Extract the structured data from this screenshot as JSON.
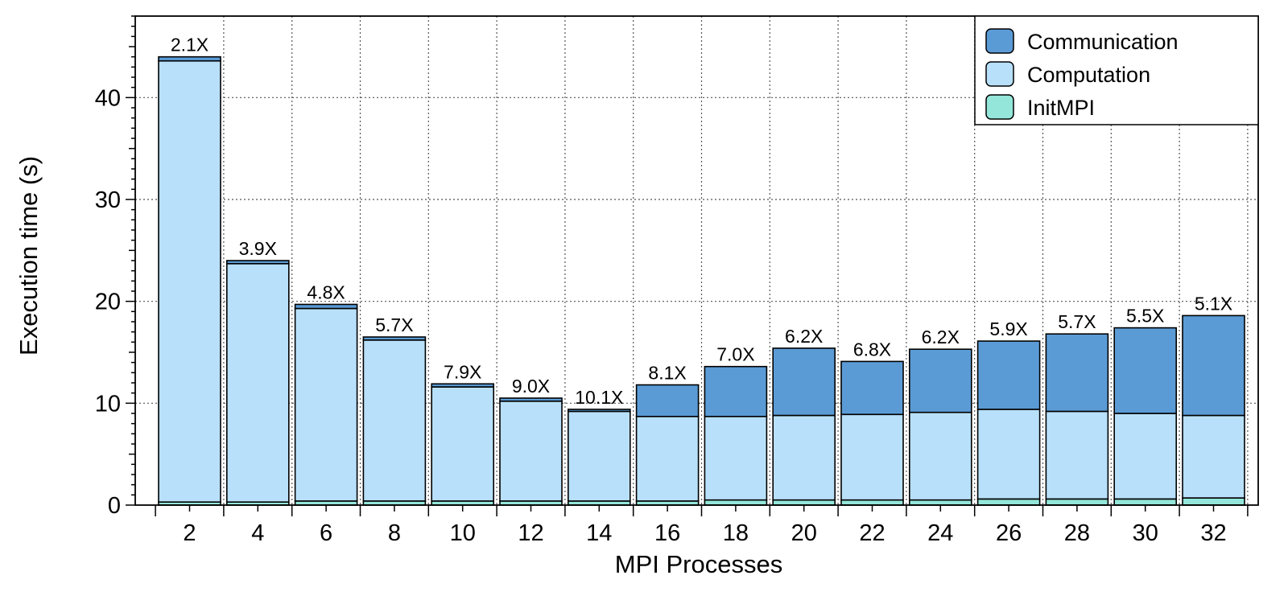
{
  "chart_data": {
    "type": "bar",
    "stacked": true,
    "xlabel": "MPI Processes",
    "ylabel": "Execution time (s)",
    "categories": [
      "2",
      "4",
      "6",
      "8",
      "10",
      "12",
      "14",
      "16",
      "18",
      "20",
      "22",
      "24",
      "26",
      "28",
      "30",
      "32"
    ],
    "ylim": [
      0,
      48
    ],
    "yticks": [
      0,
      10,
      20,
      30,
      40
    ],
    "grid": true,
    "legend_position": "top-right",
    "series": [
      {
        "name": "InitMPI",
        "color": "#93e6d9",
        "values": [
          0.3,
          0.3,
          0.4,
          0.4,
          0.4,
          0.4,
          0.4,
          0.4,
          0.5,
          0.5,
          0.5,
          0.5,
          0.6,
          0.6,
          0.6,
          0.7
        ]
      },
      {
        "name": "Computation",
        "color": "#b8e0fa",
        "values": [
          43.3,
          23.4,
          18.9,
          15.8,
          11.2,
          9.8,
          8.8,
          8.3,
          8.2,
          8.3,
          8.4,
          8.6,
          8.8,
          8.6,
          8.4,
          8.1
        ]
      },
      {
        "name": "Communication",
        "color": "#5b9bd5",
        "values": [
          0.4,
          0.3,
          0.4,
          0.3,
          0.3,
          0.3,
          0.2,
          3.1,
          4.9,
          6.6,
          5.2,
          6.2,
          6.7,
          7.6,
          8.4,
          9.8
        ]
      }
    ],
    "legend_order": [
      "Communication",
      "Computation",
      "InitMPI"
    ],
    "bar_labels": [
      "2.1X",
      "3.9X",
      "4.8X",
      "5.7X",
      "7.9X",
      "9.0X",
      "10.1X",
      "8.1X",
      "7.0X",
      "6.2X",
      "6.8X",
      "6.2X",
      "5.9X",
      "5.7X",
      "5.5X",
      "5.1X"
    ]
  }
}
